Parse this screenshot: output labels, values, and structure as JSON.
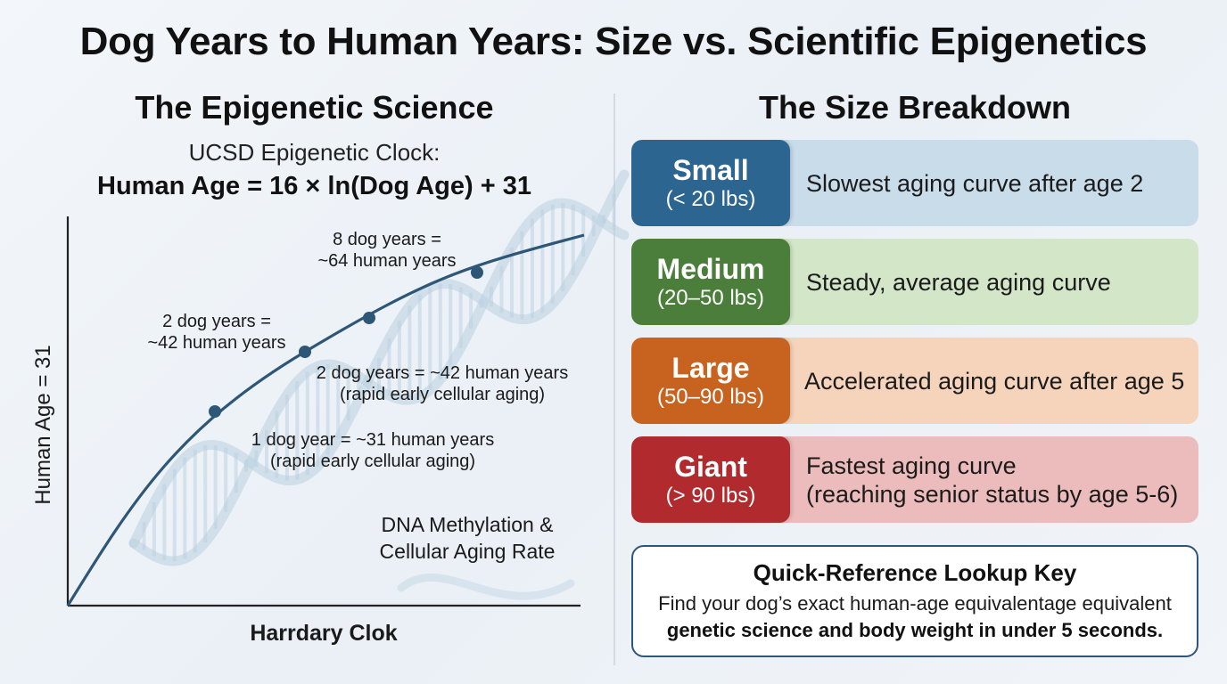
{
  "title": "Dog Years to Human Years: Size vs. Scientific Epigenetics",
  "left_panel": {
    "heading": "The Epigenetic Science",
    "clock_label": "UCSD Epigenetic Clock:",
    "formula": "Human Age = 16 × ln(Dog Age) + 31",
    "y_axis_label": "Human Age = 31",
    "x_axis_label": "Harrdary Clok",
    "annotations": {
      "eight_years": [
        "8 dog years =",
        "~64 human years"
      ],
      "two_years_upper": [
        "2 dog years =",
        "~42 human years"
      ],
      "two_years_lower": [
        "2 dog years = ~42 human years",
        "(rapid early cellular aging)"
      ],
      "one_year": [
        "1 dog year = ~31 human years",
        "(rapid early cellular aging)"
      ],
      "dna": [
        "DNA Methylation &",
        "Cellular Aging Rate"
      ]
    },
    "curve_color": "#2e5676",
    "dna_color": "#b9cfe0"
  },
  "right_panel": {
    "heading": "The Size Breakdown",
    "sizes": [
      {
        "name": "Small",
        "range": "(< 20 lbs)",
        "description": [
          "Slowest aging curve after age 2"
        ],
        "tag_color": "#2c6590",
        "bg_color": "#c9dcea"
      },
      {
        "name": "Medium",
        "range": "(20–50 lbs)",
        "description": [
          "Steady, average aging curve"
        ],
        "tag_color": "#4a7e3a",
        "bg_color": "#d3e6c8"
      },
      {
        "name": "Large",
        "range": "(50–90 lbs)",
        "description": [
          "Accelerated aging curve after age 5"
        ],
        "tag_color": "#c8621f",
        "bg_color": "#f6d4bc"
      },
      {
        "name": "Giant",
        "range": "(> 90 lbs)",
        "description": [
          "Fastest aging curve",
          "(reaching senior status by age 5-6)"
        ],
        "tag_color": "#b02a2e",
        "bg_color": "#ecbcbc"
      }
    ],
    "reference": {
      "title": "Quick-Reference Lookup Key",
      "line1": "Find your dog’s exact human-age equivalentage equivalent",
      "line2": "genetic science and body weight in under 5 seconds."
    }
  }
}
